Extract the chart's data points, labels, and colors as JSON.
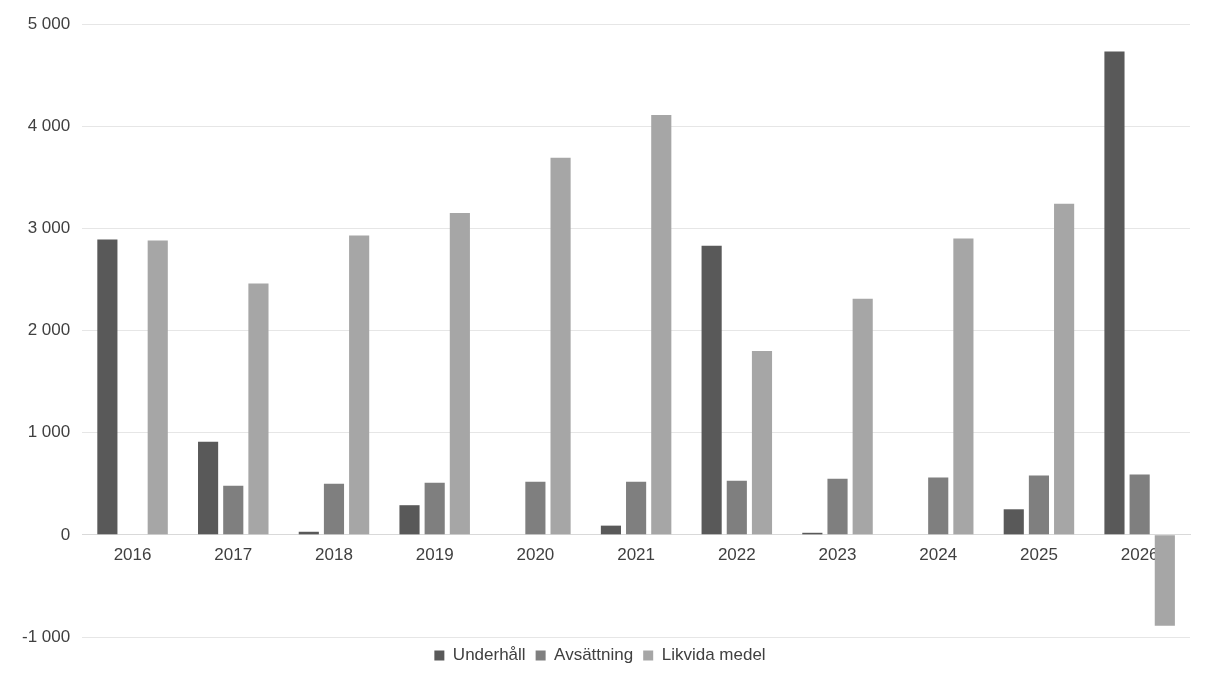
{
  "chart_data": {
    "type": "bar",
    "categories": [
      "2016",
      "2017",
      "2018",
      "2019",
      "2020",
      "2021",
      "2022",
      "2023",
      "2024",
      "2025",
      "2026"
    ],
    "series": [
      {
        "name": "Underhåll",
        "color": "#595959",
        "values": [
          2890,
          910,
          30,
          290,
          0,
          90,
          2830,
          20,
          0,
          250,
          4730
        ]
      },
      {
        "name": "Avsättning",
        "color": "#7f7f7f",
        "values": [
          0,
          480,
          500,
          510,
          520,
          520,
          530,
          550,
          560,
          580,
          590
        ]
      },
      {
        "name": "Likvida medel",
        "color": "#a6a6a6",
        "values": [
          2880,
          2460,
          2930,
          3150,
          3690,
          4110,
          1800,
          2310,
          2900,
          3240,
          -890
        ]
      }
    ],
    "ylim": [
      -1000,
      5000
    ],
    "yticks": [
      {
        "value": -1000,
        "label": "-1 000"
      },
      0,
      {
        "value": 1000,
        "label": "1 000"
      },
      {
        "value": 2000,
        "label": "2 000"
      },
      {
        "value": 3000,
        "label": "3 000"
      },
      {
        "value": 4000,
        "label": "4 000"
      },
      {
        "value": 5000,
        "label": "5 000"
      }
    ],
    "grid": "y",
    "legend": "bottom"
  }
}
